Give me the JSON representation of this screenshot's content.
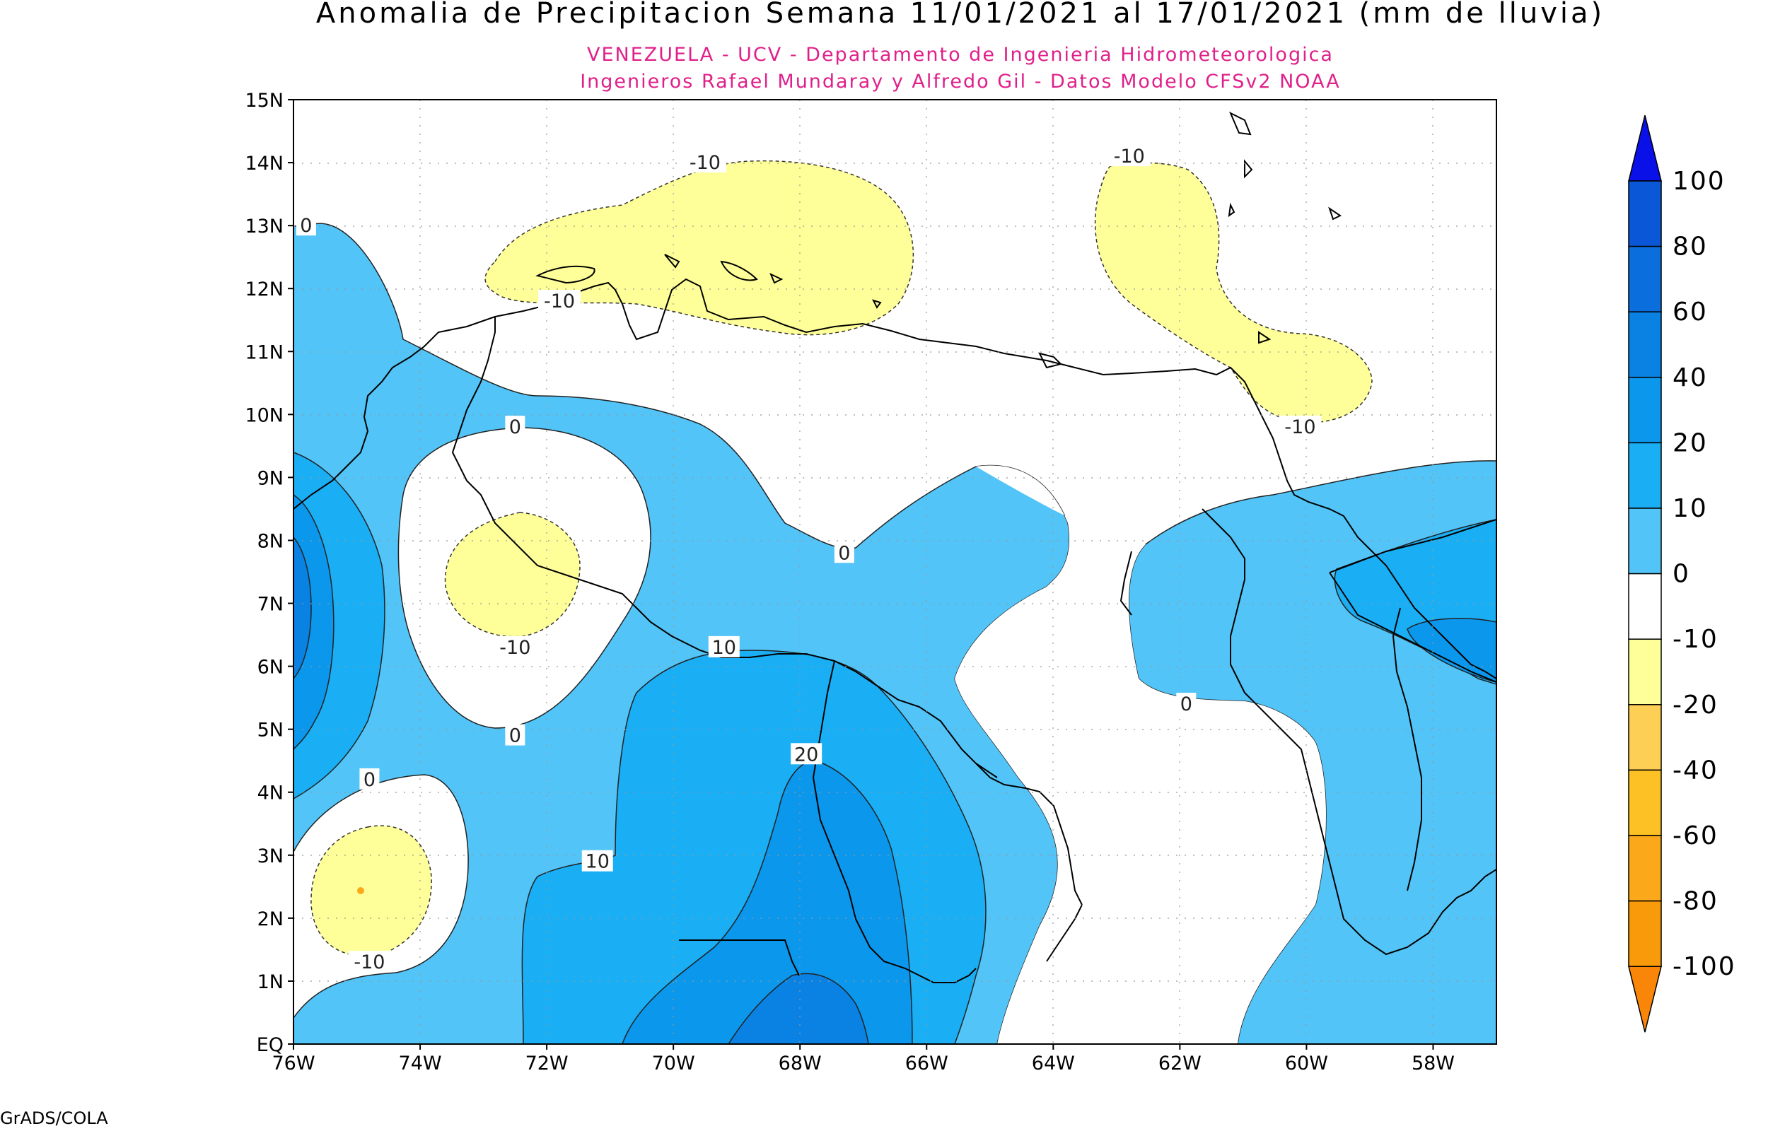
{
  "title": "Anomalia de Precipitacion Semana 11/01/2021 al 17/01/2021 (mm de lluvia)",
  "subtitle_line1": "VENEZUELA - UCV - Departamento de Ingenieria Hidrometeorologica",
  "subtitle_line2": "Ingenieros Rafael Mundaray y Alfredo Gil - Datos Modelo CFSv2 NOAA",
  "credit": "GrADS/COLA",
  "colors": {
    "subtitle": "#e0208a",
    "neg20_10": "#ffff99",
    "neg40_20": "#fdd055",
    "pos0_10": "#52c4f7",
    "pos10_20": "#1aaef4",
    "pos20_40": "#0a97ec",
    "pos40_60": "#0a82e4",
    "pos60_80": "#0a6edc",
    "pos80_100": "#0a58d8",
    "pos_over100": "#0a10e8"
  },
  "map": {
    "lon_ticks": [
      "76W",
      "74W",
      "72W",
      "70W",
      "68W",
      "66W",
      "64W",
      "62W",
      "60W",
      "58W"
    ],
    "lat_ticks": [
      "EQ",
      "1N",
      "2N",
      "3N",
      "4N",
      "5N",
      "6N",
      "7N",
      "8N",
      "9N",
      "10N",
      "11N",
      "12N",
      "13N",
      "14N",
      "15N"
    ],
    "contour_labels": [
      {
        "text": "-10",
        "lon": -69.5,
        "lat": 14.0
      },
      {
        "text": "-10",
        "lon": -62.8,
        "lat": 14.1
      },
      {
        "text": "0",
        "lon": -75.8,
        "lat": 13.0
      },
      {
        "text": "-10",
        "lon": -71.8,
        "lat": 11.8
      },
      {
        "text": "-10",
        "lon": -60.1,
        "lat": 9.8
      },
      {
        "text": "0",
        "lon": -72.5,
        "lat": 9.8
      },
      {
        "text": "0",
        "lon": -67.3,
        "lat": 7.8
      },
      {
        "text": "-10",
        "lon": -72.5,
        "lat": 6.3
      },
      {
        "text": "10",
        "lon": -69.2,
        "lat": 6.3
      },
      {
        "text": "0",
        "lon": -61.9,
        "lat": 5.4
      },
      {
        "text": "0",
        "lon": -72.5,
        "lat": 4.9
      },
      {
        "text": "20",
        "lon": -67.9,
        "lat": 4.6
      },
      {
        "text": "0",
        "lon": -74.8,
        "lat": 4.2
      },
      {
        "text": "10",
        "lon": -71.2,
        "lat": 2.9
      },
      {
        "text": "-10",
        "lon": -74.8,
        "lat": 1.3
      }
    ]
  },
  "legend": {
    "labels": [
      "100",
      "80",
      "60",
      "40",
      "20",
      "10",
      "0",
      "-10",
      "-20",
      "-40",
      "-60",
      "-80",
      "-100"
    ],
    "bins": [
      {
        "from": 80,
        "to": 100,
        "color": "#0a58d8"
      },
      {
        "from": 60,
        "to": 80,
        "color": "#0a6edc"
      },
      {
        "from": 40,
        "to": 60,
        "color": "#0a82e4"
      },
      {
        "from": 20,
        "to": 40,
        "color": "#0a97ec"
      },
      {
        "from": 10,
        "to": 20,
        "color": "#1aaef4"
      },
      {
        "from": 0,
        "to": 10,
        "color": "#52c4f7"
      },
      {
        "from": -10,
        "to": 0,
        "color": "#ffffff"
      },
      {
        "from": -20,
        "to": -10,
        "color": "#ffff99"
      },
      {
        "from": -40,
        "to": -20,
        "color": "#fdd055"
      },
      {
        "from": -60,
        "to": -40,
        "color": "#fdc125"
      },
      {
        "from": -80,
        "to": -60,
        "color": "#fba91a"
      },
      {
        "from": -100,
        "to": -80,
        "color": "#f99a0a"
      }
    ],
    "top_arrow_color": "#0a10e8",
    "bottom_arrow_color": "#f98608"
  }
}
